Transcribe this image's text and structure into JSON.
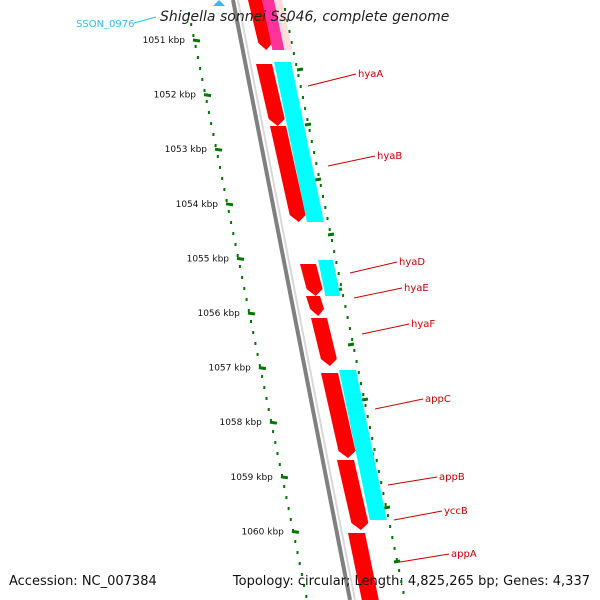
{
  "title": "Shigella sonnei Ss046, complete genome",
  "accession": "Accession: NC_007384",
  "topology": "Topology: circular; Length: 4,825,265 bp; Genes: 4,337",
  "top_gene_label": "SSON_0976",
  "scale_ticks": [
    {
      "label": "1051 kbp"
    },
    {
      "label": "1052 kbp"
    },
    {
      "label": "1053 kbp"
    },
    {
      "label": "1054 kbp"
    },
    {
      "label": "1055 kbp"
    },
    {
      "label": "1056 kbp"
    },
    {
      "label": "1057 kbp"
    },
    {
      "label": "1058 kbp"
    },
    {
      "label": "1059 kbp"
    },
    {
      "label": "1060 kbp"
    }
  ],
  "gene_labels": [
    "hyaA",
    "hyaB",
    "hyaD",
    "hyaE",
    "hyaF",
    "appC",
    "appB",
    "yccB",
    "appA"
  ],
  "colors": {
    "cds": "#ff0000",
    "rna": "#00ffff",
    "pink_feature": "#ff3399",
    "backbone": "#808080",
    "scale": "#007700",
    "label_line": "#cc0000",
    "top_label": "#33bbee"
  }
}
